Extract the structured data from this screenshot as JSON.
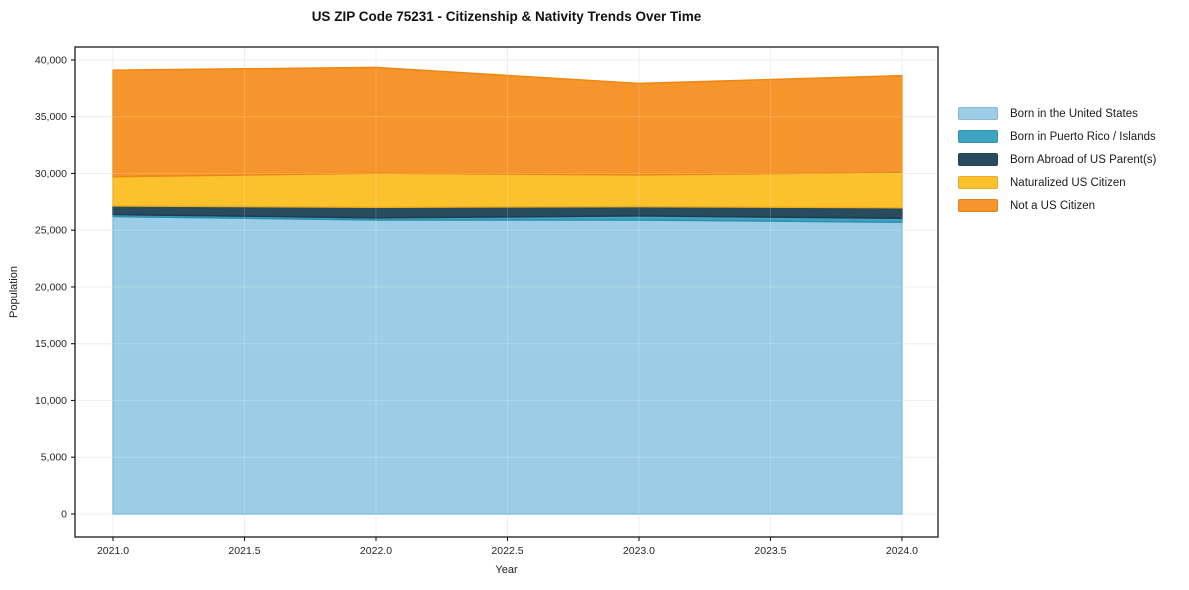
{
  "title": "US ZIP Code 75231 - Citizenship & Nativity Trends Over Time",
  "chart_data": {
    "type": "area",
    "stacked": true,
    "title": "US ZIP Code 75231 - Citizenship & Nativity Trends Over Time",
    "xlabel": "Year",
    "ylabel": "Population",
    "x": [
      2021,
      2022,
      2023,
      2024
    ],
    "series": [
      {
        "name": "Born in the United States",
        "values": [
          26200,
          25900,
          25900,
          25700
        ],
        "color": "#9DCDE6",
        "edge": "#74BBDC"
      },
      {
        "name": "Born in Puerto Rico / Islands",
        "values": [
          180,
          190,
          360,
          350
        ],
        "color": "#3EA2C1",
        "edge": "#2E8FAE"
      },
      {
        "name": "Born Abroad of US Parent(s)",
        "values": [
          760,
          930,
          820,
          930
        ],
        "color": "#284B5E",
        "edge": "#1E3D4E"
      },
      {
        "name": "Naturalized US Citizen",
        "values": [
          2570,
          3000,
          2790,
          3120
        ],
        "color": "#FCC22E",
        "edge": "#EFAD17"
      },
      {
        "name": "Not a US Citizen",
        "values": [
          9390,
          9320,
          8060,
          8520
        ],
        "color": "#F6952B",
        "edge": "#EE8814"
      }
    ],
    "totals": [
      39100,
      39340,
      37930,
      38620
    ],
    "xlim": [
      2020.8555,
      2024.137
    ],
    "ylim": [
      -2030,
      41140
    ],
    "xticks": [
      2021.0,
      2021.5,
      2022.0,
      2022.5,
      2023.0,
      2023.5,
      2024.0
    ],
    "yticks": [
      0,
      5000,
      10000,
      15000,
      20000,
      25000,
      30000,
      35000,
      40000
    ],
    "grid": true,
    "grid_color": "#ECECEC",
    "frame_color": "#1a1a1a",
    "legend_position": "right"
  }
}
